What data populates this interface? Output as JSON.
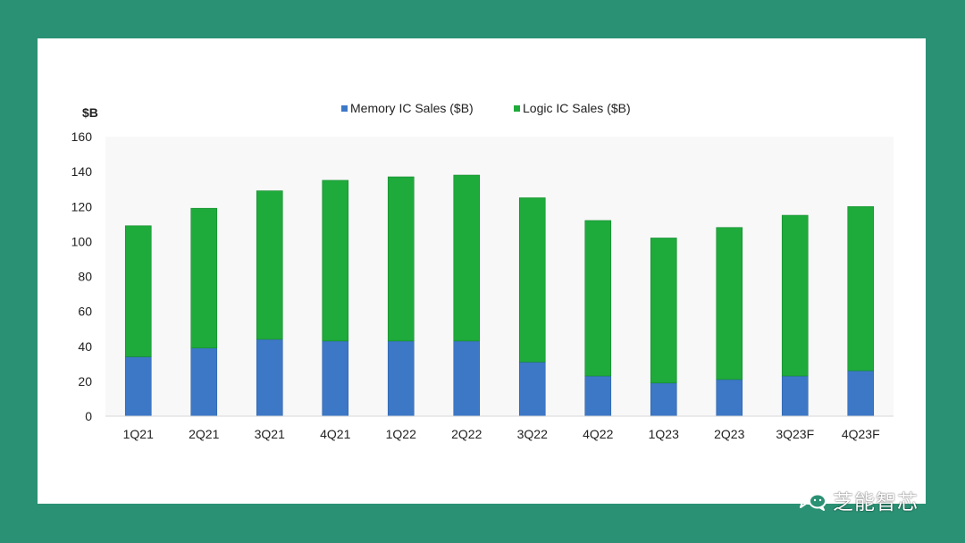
{
  "chart_data": {
    "type": "bar",
    "stacked": true,
    "categories": [
      "1Q21",
      "2Q21",
      "3Q21",
      "4Q21",
      "1Q22",
      "2Q22",
      "3Q22",
      "4Q22",
      "1Q23",
      "2Q23",
      "3Q23F",
      "4Q23F"
    ],
    "series": [
      {
        "name": "Memory IC Sales ($B)",
        "color": "#3d78c7",
        "values": [
          34,
          39,
          44,
          43,
          43,
          43,
          31,
          23,
          19,
          21,
          23,
          26
        ]
      },
      {
        "name": "Logic IC Sales ($B)",
        "color": "#1faa3c",
        "values": [
          75,
          80,
          85,
          92,
          94,
          95,
          94,
          89,
          83,
          87,
          92,
          94
        ]
      }
    ],
    "ylabel": "$B",
    "ylim": [
      0,
      160
    ],
    "yticks": [
      0,
      20,
      40,
      60,
      80,
      100,
      120,
      140,
      160
    ],
    "grid": false,
    "legend": "top-center"
  },
  "watermark": {
    "icon": "wechat-icon",
    "text": "芝能智芯"
  }
}
